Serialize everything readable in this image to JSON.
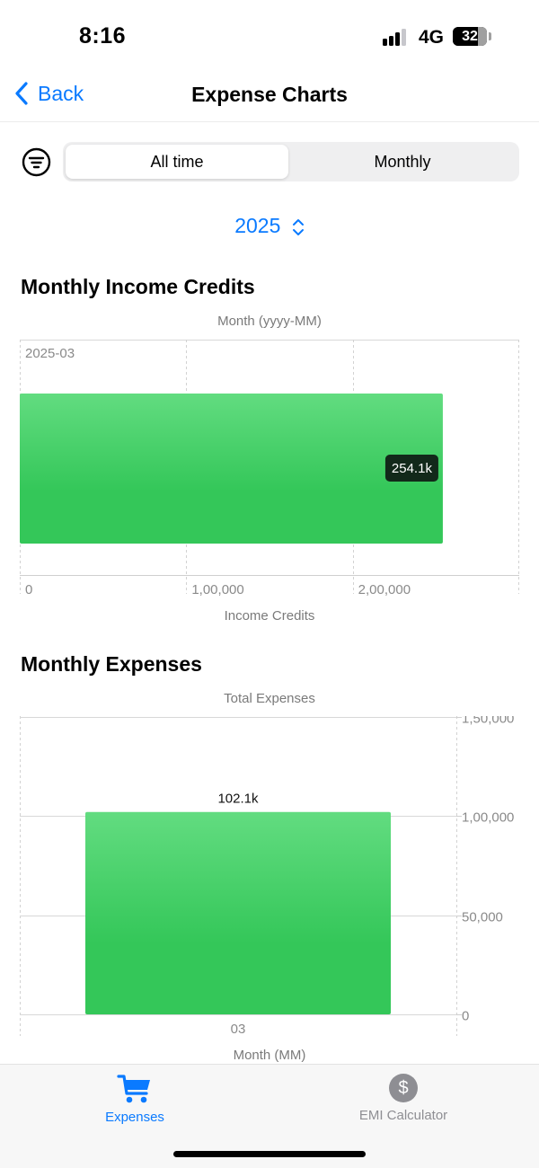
{
  "status": {
    "time": "8:16",
    "network": "4G",
    "battery": "32"
  },
  "nav": {
    "back_label": "Back",
    "title": "Expense Charts"
  },
  "segments": {
    "selected": "All time",
    "other": "Monthly"
  },
  "year_picker": {
    "value": "2025"
  },
  "income_section": {
    "title": "Monthly Income Credits",
    "y_axis_title": "Month (yyyy-MM)",
    "x_axis_title": "Income Credits"
  },
  "expenses_section": {
    "title": "Monthly Expenses",
    "top_title": "Total Expenses",
    "x_axis_title": "Month (MM)"
  },
  "colors": {
    "accent": "#0a7aff",
    "bar_top": "#62dc80",
    "bar_bottom": "#34c759",
    "tooltip_bg": "#12291a"
  },
  "chart_data": [
    {
      "type": "bar",
      "orientation": "horizontal",
      "title": "Monthly Income Credits",
      "categories": [
        "2025-03"
      ],
      "values": [
        254100
      ],
      "data_labels": [
        "254.1k"
      ],
      "xlabel": "Income Credits",
      "ylabel": "Month (yyyy-MM)",
      "xlim": [
        0,
        300000
      ],
      "x_ticks": [
        0,
        100000,
        200000
      ],
      "x_tick_labels": [
        "0",
        "1,00,000",
        "2,00,000"
      ],
      "grid": true
    },
    {
      "type": "bar",
      "orientation": "vertical",
      "title": "Monthly Expenses",
      "categories": [
        "03"
      ],
      "values": [
        102100
      ],
      "data_labels": [
        "102.1k"
      ],
      "xlabel": "Month (MM)",
      "ylabel": "Total Expenses",
      "ylim": [
        0,
        150000
      ],
      "y_ticks": [
        0,
        50000,
        100000,
        150000
      ],
      "y_tick_labels": [
        "0",
        "50,000",
        "1,00,000",
        "1,50,000"
      ],
      "grid": true
    }
  ],
  "tab_bar": {
    "items": [
      {
        "label": "Expenses",
        "icon": "cart-icon",
        "active": true
      },
      {
        "label": "EMI Calculator",
        "icon": "dollar-icon",
        "symbol": "$",
        "active": false
      }
    ]
  }
}
